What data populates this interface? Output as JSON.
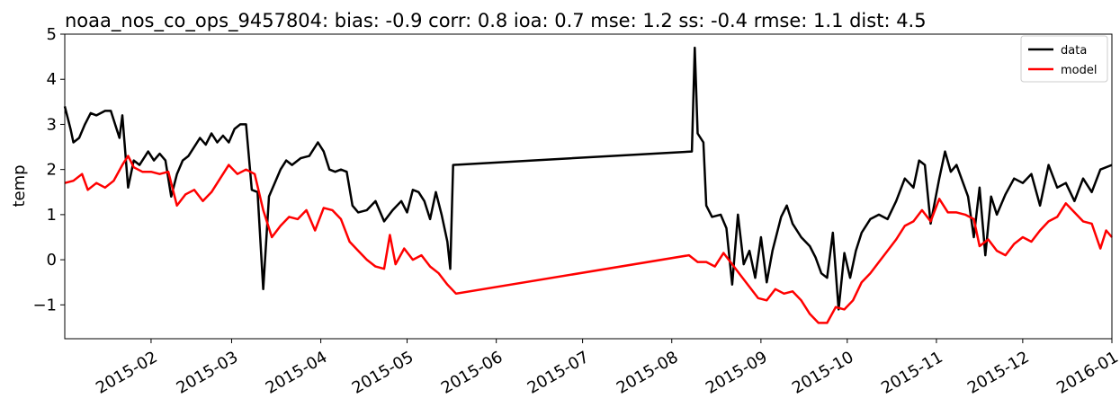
{
  "chart_data": {
    "type": "line",
    "title": "noaa_nos_co_ops_9457804: bias: -0.9  corr: 0.8  ioa: 0.7  mse: 1.2  ss: -0.4  rmse: 1.1  dist: 4.5",
    "xlabel": "",
    "ylabel": "temp",
    "xlim": [
      "2015-01-02",
      "2016-01-01"
    ],
    "ylim": [
      -1.75,
      5.0
    ],
    "x_tick_labels": [
      "2015-02",
      "2015-03",
      "2015-04",
      "2015-05",
      "2015-06",
      "2015-07",
      "2015-08",
      "2015-09",
      "2015-10",
      "2015-11",
      "2015-12",
      "2016-01"
    ],
    "y_ticks": [
      5,
      4,
      3,
      2,
      1,
      0,
      -1
    ],
    "y_tick_labels": [
      "5",
      "4",
      "3",
      "2",
      "1",
      "0",
      "−1"
    ],
    "grid": false,
    "legend_position": "top-right",
    "series": [
      {
        "name": "data",
        "color": "#000000",
        "points": [
          [
            "2015-01-02",
            3.4
          ],
          [
            "2015-01-04",
            2.9
          ],
          [
            "2015-01-05",
            2.6
          ],
          [
            "2015-01-07",
            2.7
          ],
          [
            "2015-01-09",
            3.0
          ],
          [
            "2015-01-11",
            3.25
          ],
          [
            "2015-01-13",
            3.2
          ],
          [
            "2015-01-16",
            3.3
          ],
          [
            "2015-01-18",
            3.3
          ],
          [
            "2015-01-20",
            2.9
          ],
          [
            "2015-01-21",
            2.7
          ],
          [
            "2015-01-22",
            3.2
          ],
          [
            "2015-01-24",
            1.6
          ],
          [
            "2015-01-26",
            2.2
          ],
          [
            "2015-01-28",
            2.1
          ],
          [
            "2015-01-31",
            2.4
          ],
          [
            "2015-02-02",
            2.2
          ],
          [
            "2015-02-04",
            2.35
          ],
          [
            "2015-02-06",
            2.2
          ],
          [
            "2015-02-08",
            1.4
          ],
          [
            "2015-02-10",
            1.9
          ],
          [
            "2015-02-12",
            2.2
          ],
          [
            "2015-02-14",
            2.3
          ],
          [
            "2015-02-16",
            2.5
          ],
          [
            "2015-02-18",
            2.7
          ],
          [
            "2015-02-20",
            2.55
          ],
          [
            "2015-02-22",
            2.8
          ],
          [
            "2015-02-24",
            2.6
          ],
          [
            "2015-02-26",
            2.75
          ],
          [
            "2015-02-28",
            2.6
          ],
          [
            "2015-03-02",
            2.9
          ],
          [
            "2015-03-04",
            3.0
          ],
          [
            "2015-03-06",
            3.0
          ],
          [
            "2015-03-08",
            1.55
          ],
          [
            "2015-03-10",
            1.5
          ],
          [
            "2015-03-12",
            -0.65
          ],
          [
            "2015-03-14",
            1.4
          ],
          [
            "2015-03-16",
            1.7
          ],
          [
            "2015-03-18",
            2.0
          ],
          [
            "2015-03-20",
            2.2
          ],
          [
            "2015-03-22",
            2.1
          ],
          [
            "2015-03-25",
            2.25
          ],
          [
            "2015-03-28",
            2.3
          ],
          [
            "2015-03-31",
            2.6
          ],
          [
            "2015-04-02",
            2.4
          ],
          [
            "2015-04-04",
            2.0
          ],
          [
            "2015-04-06",
            1.95
          ],
          [
            "2015-04-08",
            2.0
          ],
          [
            "2015-04-10",
            1.95
          ],
          [
            "2015-04-12",
            1.2
          ],
          [
            "2015-04-14",
            1.05
          ],
          [
            "2015-04-17",
            1.1
          ],
          [
            "2015-04-20",
            1.3
          ],
          [
            "2015-04-23",
            0.85
          ],
          [
            "2015-04-26",
            1.1
          ],
          [
            "2015-04-29",
            1.3
          ],
          [
            "2015-05-01",
            1.05
          ],
          [
            "2015-05-03",
            1.55
          ],
          [
            "2015-05-05",
            1.5
          ],
          [
            "2015-05-07",
            1.3
          ],
          [
            "2015-05-09",
            0.9
          ],
          [
            "2015-05-11",
            1.5
          ],
          [
            "2015-05-13",
            1.0
          ],
          [
            "2015-05-15",
            0.4
          ],
          [
            "2015-05-16",
            -0.2
          ],
          [
            "2015-05-17",
            2.1
          ],
          [
            "2015-08-08",
            2.4
          ],
          [
            "2015-08-09",
            4.7
          ],
          [
            "2015-08-10",
            2.8
          ],
          [
            "2015-08-12",
            2.6
          ],
          [
            "2015-08-13",
            1.2
          ],
          [
            "2015-08-15",
            0.95
          ],
          [
            "2015-08-18",
            1.0
          ],
          [
            "2015-08-20",
            0.7
          ],
          [
            "2015-08-22",
            -0.55
          ],
          [
            "2015-08-24",
            1.0
          ],
          [
            "2015-08-26",
            -0.1
          ],
          [
            "2015-08-28",
            0.2
          ],
          [
            "2015-08-30",
            -0.4
          ],
          [
            "2015-09-01",
            0.5
          ],
          [
            "2015-09-03",
            -0.5
          ],
          [
            "2015-09-05",
            0.2
          ],
          [
            "2015-09-08",
            0.95
          ],
          [
            "2015-09-10",
            1.2
          ],
          [
            "2015-09-12",
            0.8
          ],
          [
            "2015-09-15",
            0.5
          ],
          [
            "2015-09-18",
            0.3
          ],
          [
            "2015-09-20",
            0.05
          ],
          [
            "2015-09-22",
            -0.3
          ],
          [
            "2015-09-24",
            -0.4
          ],
          [
            "2015-09-26",
            0.6
          ],
          [
            "2015-09-28",
            -1.1
          ],
          [
            "2015-09-30",
            0.15
          ],
          [
            "2015-10-02",
            -0.4
          ],
          [
            "2015-10-04",
            0.2
          ],
          [
            "2015-10-06",
            0.6
          ],
          [
            "2015-10-09",
            0.9
          ],
          [
            "2015-10-12",
            1.0
          ],
          [
            "2015-10-15",
            0.9
          ],
          [
            "2015-10-18",
            1.3
          ],
          [
            "2015-10-21",
            1.8
          ],
          [
            "2015-10-24",
            1.6
          ],
          [
            "2015-10-26",
            2.2
          ],
          [
            "2015-10-28",
            2.1
          ],
          [
            "2015-10-30",
            0.8
          ],
          [
            "2015-11-02",
            1.8
          ],
          [
            "2015-11-04",
            2.4
          ],
          [
            "2015-11-06",
            1.95
          ],
          [
            "2015-11-08",
            2.1
          ],
          [
            "2015-11-10",
            1.75
          ],
          [
            "2015-11-12",
            1.4
          ],
          [
            "2015-11-14",
            0.5
          ],
          [
            "2015-11-16",
            1.6
          ],
          [
            "2015-11-18",
            0.1
          ],
          [
            "2015-11-20",
            1.4
          ],
          [
            "2015-11-22",
            1.0
          ],
          [
            "2015-11-25",
            1.45
          ],
          [
            "2015-11-28",
            1.8
          ],
          [
            "2015-12-01",
            1.7
          ],
          [
            "2015-12-04",
            1.9
          ],
          [
            "2015-12-07",
            1.2
          ],
          [
            "2015-12-10",
            2.1
          ],
          [
            "2015-12-13",
            1.6
          ],
          [
            "2015-12-16",
            1.7
          ],
          [
            "2015-12-19",
            1.3
          ],
          [
            "2015-12-22",
            1.8
          ],
          [
            "2015-12-25",
            1.5
          ],
          [
            "2015-12-28",
            2.0
          ],
          [
            "2016-01-01",
            2.1
          ]
        ]
      },
      {
        "name": "model",
        "color": "#ff0000",
        "points": [
          [
            "2015-01-02",
            1.7
          ],
          [
            "2015-01-05",
            1.75
          ],
          [
            "2015-01-08",
            1.9
          ],
          [
            "2015-01-10",
            1.55
          ],
          [
            "2015-01-13",
            1.7
          ],
          [
            "2015-01-16",
            1.6
          ],
          [
            "2015-01-19",
            1.75
          ],
          [
            "2015-01-22",
            2.1
          ],
          [
            "2015-01-24",
            2.3
          ],
          [
            "2015-01-26",
            2.05
          ],
          [
            "2015-01-29",
            1.95
          ],
          [
            "2015-02-01",
            1.95
          ],
          [
            "2015-02-04",
            1.9
          ],
          [
            "2015-02-07",
            1.95
          ],
          [
            "2015-02-10",
            1.2
          ],
          [
            "2015-02-13",
            1.45
          ],
          [
            "2015-02-16",
            1.55
          ],
          [
            "2015-02-19",
            1.3
          ],
          [
            "2015-02-22",
            1.5
          ],
          [
            "2015-02-25",
            1.8
          ],
          [
            "2015-02-28",
            2.1
          ],
          [
            "2015-03-03",
            1.9
          ],
          [
            "2015-03-06",
            2.0
          ],
          [
            "2015-03-09",
            1.9
          ],
          [
            "2015-03-12",
            1.1
          ],
          [
            "2015-03-15",
            0.5
          ],
          [
            "2015-03-18",
            0.75
          ],
          [
            "2015-03-21",
            0.95
          ],
          [
            "2015-03-24",
            0.9
          ],
          [
            "2015-03-27",
            1.1
          ],
          [
            "2015-03-30",
            0.65
          ],
          [
            "2015-04-02",
            1.15
          ],
          [
            "2015-04-05",
            1.1
          ],
          [
            "2015-04-08",
            0.9
          ],
          [
            "2015-04-11",
            0.4
          ],
          [
            "2015-04-14",
            0.2
          ],
          [
            "2015-04-17",
            0.0
          ],
          [
            "2015-04-20",
            -0.15
          ],
          [
            "2015-04-23",
            -0.2
          ],
          [
            "2015-04-25",
            0.55
          ],
          [
            "2015-04-27",
            -0.1
          ],
          [
            "2015-04-30",
            0.25
          ],
          [
            "2015-05-03",
            0.0
          ],
          [
            "2015-05-06",
            0.1
          ],
          [
            "2015-05-09",
            -0.15
          ],
          [
            "2015-05-12",
            -0.3
          ],
          [
            "2015-05-15",
            -0.55
          ],
          [
            "2015-05-18",
            -0.75
          ],
          [
            "2015-08-07",
            0.1
          ],
          [
            "2015-08-10",
            -0.05
          ],
          [
            "2015-08-13",
            -0.05
          ],
          [
            "2015-08-16",
            -0.15
          ],
          [
            "2015-08-19",
            0.15
          ],
          [
            "2015-08-22",
            -0.1
          ],
          [
            "2015-08-25",
            -0.35
          ],
          [
            "2015-08-28",
            -0.6
          ],
          [
            "2015-08-31",
            -0.85
          ],
          [
            "2015-09-03",
            -0.9
          ],
          [
            "2015-09-06",
            -0.65
          ],
          [
            "2015-09-09",
            -0.75
          ],
          [
            "2015-09-12",
            -0.7
          ],
          [
            "2015-09-15",
            -0.9
          ],
          [
            "2015-09-18",
            -1.2
          ],
          [
            "2015-09-21",
            -1.4
          ],
          [
            "2015-09-24",
            -1.4
          ],
          [
            "2015-09-27",
            -1.05
          ],
          [
            "2015-09-30",
            -1.1
          ],
          [
            "2015-10-03",
            -0.9
          ],
          [
            "2015-10-06",
            -0.5
          ],
          [
            "2015-10-09",
            -0.3
          ],
          [
            "2015-10-12",
            -0.05
          ],
          [
            "2015-10-15",
            0.2
          ],
          [
            "2015-10-18",
            0.45
          ],
          [
            "2015-10-21",
            0.75
          ],
          [
            "2015-10-24",
            0.85
          ],
          [
            "2015-10-27",
            1.1
          ],
          [
            "2015-10-30",
            0.85
          ],
          [
            "2015-11-02",
            1.35
          ],
          [
            "2015-11-05",
            1.05
          ],
          [
            "2015-11-08",
            1.05
          ],
          [
            "2015-11-11",
            1.0
          ],
          [
            "2015-11-14",
            0.9
          ],
          [
            "2015-11-16",
            0.3
          ],
          [
            "2015-11-19",
            0.45
          ],
          [
            "2015-11-22",
            0.2
          ],
          [
            "2015-11-25",
            0.1
          ],
          [
            "2015-11-28",
            0.35
          ],
          [
            "2015-12-01",
            0.5
          ],
          [
            "2015-12-04",
            0.4
          ],
          [
            "2015-12-07",
            0.65
          ],
          [
            "2015-12-10",
            0.85
          ],
          [
            "2015-12-13",
            0.95
          ],
          [
            "2015-12-16",
            1.25
          ],
          [
            "2015-12-19",
            1.05
          ],
          [
            "2015-12-22",
            0.85
          ],
          [
            "2015-12-25",
            0.8
          ],
          [
            "2015-12-28",
            0.25
          ],
          [
            "2015-12-30",
            0.65
          ],
          [
            "2016-01-01",
            0.5
          ]
        ]
      }
    ]
  }
}
